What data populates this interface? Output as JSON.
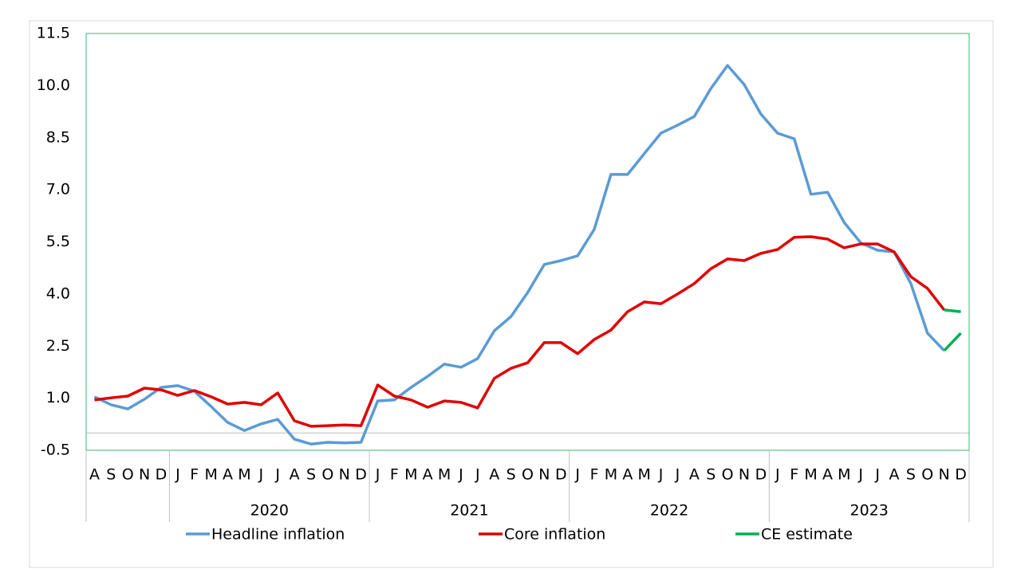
{
  "chart_data": {
    "type": "line",
    "categories": [
      "A",
      "S",
      "O",
      "N",
      "D",
      "J",
      "F",
      "M",
      "A",
      "M",
      "J",
      "J",
      "A",
      "S",
      "O",
      "N",
      "D",
      "J",
      "F",
      "M",
      "A",
      "M",
      "J",
      "J",
      "A",
      "S",
      "O",
      "N",
      "D",
      "J",
      "F",
      "M",
      "A",
      "M",
      "J",
      "J",
      "A",
      "S",
      "O",
      "N",
      "D",
      "J",
      "F",
      "M",
      "A",
      "M",
      "J",
      "J",
      "A",
      "S",
      "O",
      "N",
      "D"
    ],
    "groups": [
      {
        "size": 5
      },
      {
        "label": "2020",
        "size": 12
      },
      {
        "label": "2021",
        "size": 12
      },
      {
        "label": "2022",
        "size": 12
      },
      {
        "label": "2023",
        "size": 12
      }
    ],
    "ylim": [
      -0.5,
      11.5
    ],
    "yticks": [
      -0.5,
      {
        "value": 1,
        "label": "1.0"
      },
      2.5,
      {
        "value": 4,
        "label": "4.0"
      },
      5.5,
      {
        "value": 7,
        "label": "7.0"
      },
      8.5,
      {
        "value": 10,
        "label": "10.0"
      },
      11.5
    ],
    "series": [
      {
        "name": "Headline inflation",
        "color": "#5b9bd5",
        "values": [
          1.04,
          0.81,
          0.69,
          0.97,
          1.31,
          1.36,
          1.2,
          0.76,
          0.3,
          0.07,
          0.26,
          0.39,
          -0.18,
          -0.32,
          -0.27,
          -0.29,
          -0.27,
          0.92,
          0.95,
          1.31,
          1.63,
          1.98,
          1.89,
          2.14,
          2.94,
          3.35,
          4.04,
          4.85,
          4.96,
          5.1,
          5.86,
          7.44,
          7.44,
          8.04,
          8.63,
          8.86,
          9.11,
          9.92,
          10.58,
          10.03,
          9.18,
          8.63,
          8.47,
          6.87,
          6.93,
          6.06,
          5.47,
          5.26,
          5.21,
          4.3,
          2.87,
          2.37,
          null
        ]
      },
      {
        "name": "Core inflation",
        "color": "#e00000",
        "values": [
          0.95,
          1.01,
          1.06,
          1.29,
          1.24,
          1.08,
          1.22,
          1.04,
          0.83,
          0.88,
          0.81,
          1.15,
          0.35,
          0.19,
          0.21,
          0.23,
          0.21,
          1.38,
          1.06,
          0.95,
          0.74,
          0.92,
          0.88,
          0.72,
          1.57,
          1.86,
          2.02,
          2.6,
          2.6,
          2.28,
          2.69,
          2.96,
          3.49,
          3.77,
          3.72,
          4.0,
          4.3,
          4.73,
          5.01,
          4.96,
          5.17,
          5.28,
          5.63,
          5.65,
          5.58,
          5.33,
          5.44,
          5.44,
          5.21,
          4.5,
          4.16,
          3.54,
          null
        ]
      },
      {
        "name": "CE estimate",
        "color": "#00b050",
        "lines": [
          [
            null,
            null,
            null,
            null,
            null,
            null,
            null,
            null,
            null,
            null,
            null,
            null,
            null,
            null,
            null,
            null,
            null,
            null,
            null,
            null,
            null,
            null,
            null,
            null,
            null,
            null,
            null,
            null,
            null,
            null,
            null,
            null,
            null,
            null,
            null,
            null,
            null,
            null,
            null,
            null,
            null,
            null,
            null,
            null,
            null,
            null,
            null,
            null,
            null,
            null,
            null,
            2.37,
            2.87
          ],
          [
            null,
            null,
            null,
            null,
            null,
            null,
            null,
            null,
            null,
            null,
            null,
            null,
            null,
            null,
            null,
            null,
            null,
            null,
            null,
            null,
            null,
            null,
            null,
            null,
            null,
            null,
            null,
            null,
            null,
            null,
            null,
            null,
            null,
            null,
            null,
            null,
            null,
            null,
            null,
            null,
            null,
            null,
            null,
            null,
            null,
            null,
            null,
            null,
            null,
            null,
            null,
            3.54,
            3.49
          ]
        ]
      }
    ]
  }
}
